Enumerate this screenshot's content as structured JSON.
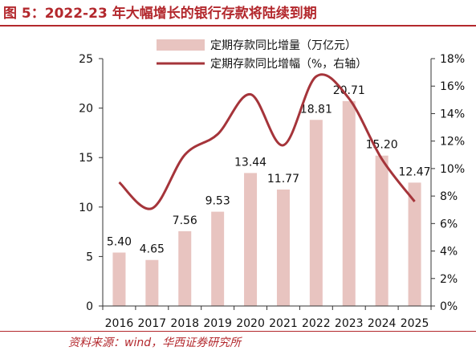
{
  "title": "图 5：2022-23 年大幅增长的银行存款将陆续到期",
  "source": "资料来源：wind，华西证券研究所",
  "colors": {
    "bar": "#e8c4c0",
    "line": "#a5343a",
    "accent": "#b3282d"
  },
  "chart_data": {
    "type": "bar",
    "categories": [
      "2016",
      "2017",
      "2018",
      "2019",
      "2020",
      "2021",
      "2022",
      "2023",
      "2024",
      "2025"
    ],
    "series": [
      {
        "name": "定期存款同比增量（万亿元）",
        "type": "bar",
        "axis": "left",
        "values": [
          5.4,
          4.65,
          7.56,
          9.53,
          13.44,
          11.77,
          18.81,
          20.71,
          15.2,
          12.47
        ],
        "labels": [
          "5.40",
          "4.65",
          "7.56",
          "9.53",
          "13.44",
          "11.77",
          "18.81",
          "20.71",
          "15.20",
          "12.47"
        ]
      },
      {
        "name": "定期存款同比增幅（%，右轴）",
        "type": "line",
        "axis": "right",
        "values": [
          9.0,
          7.1,
          11.0,
          12.5,
          15.4,
          11.7,
          16.7,
          15.1,
          10.7,
          7.6
        ]
      }
    ],
    "y_left": {
      "min": 0,
      "max": 25,
      "ticks": [
        "0",
        "5",
        "10",
        "15",
        "20",
        "25"
      ]
    },
    "y_right": {
      "min": 0,
      "max": 18,
      "ticks": [
        "0%",
        "2%",
        "4%",
        "6%",
        "8%",
        "10%",
        "12%",
        "14%",
        "16%",
        "18%"
      ]
    },
    "grid": false,
    "legend": "top-right"
  }
}
